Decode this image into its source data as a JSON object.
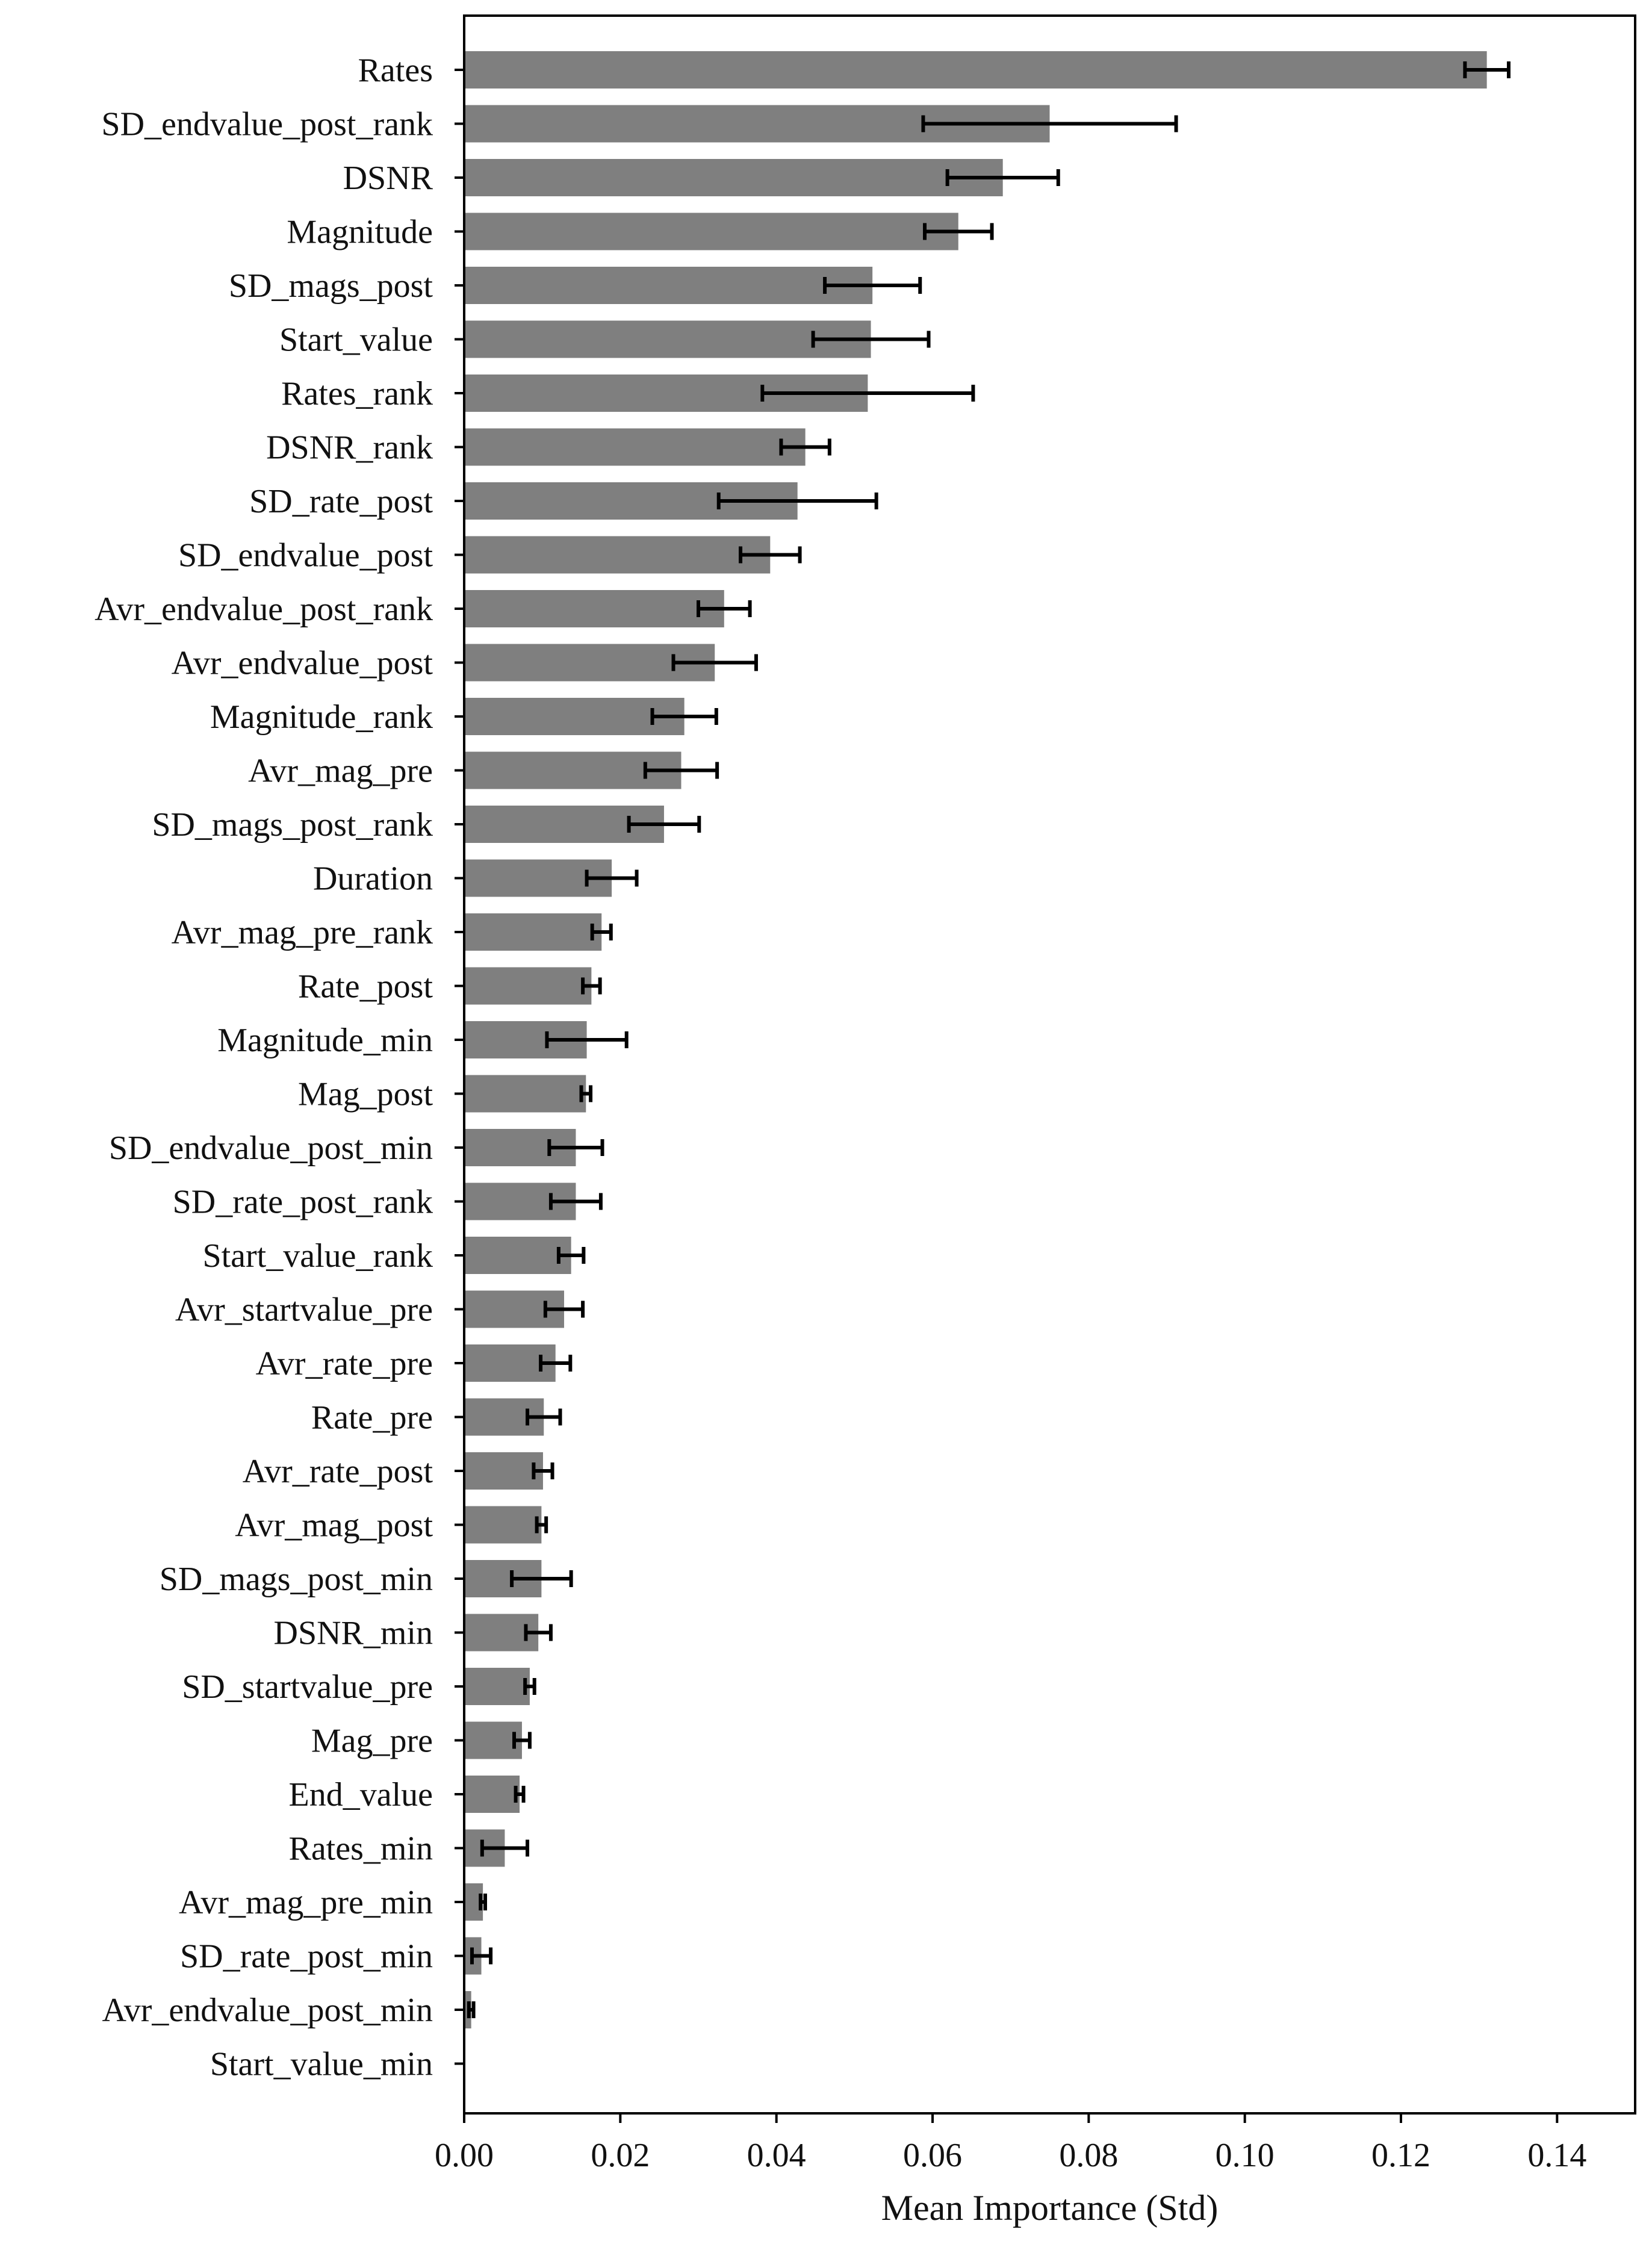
{
  "chart_data": {
    "type": "bar",
    "orientation": "horizontal",
    "title": "",
    "xlabel": "Mean Importance (Std)",
    "ylabel": "",
    "xlim": [
      0,
      0.15
    ],
    "xticks": [
      "0.00",
      "0.02",
      "0.04",
      "0.06",
      "0.08",
      "0.10",
      "0.12",
      "0.14"
    ],
    "grid": false,
    "legend": "none",
    "bar_color": "#7f7f7f",
    "error_color": "#000000",
    "categories": [
      "Rates",
      "SD_endvalue_post_rank",
      "DSNR",
      "Magnitude",
      "SD_mags_post",
      "Start_value",
      "Rates_rank",
      "DSNR_rank",
      "SD_rate_post",
      "SD_endvalue_post",
      "Avr_endvalue_post_rank",
      "Avr_endvalue_post",
      "Magnitude_rank",
      "Avr_mag_pre",
      "SD_mags_post_rank",
      "Duration",
      "Avr_mag_pre_rank",
      "Rate_post",
      "Magnitude_min",
      "Mag_post",
      "SD_endvalue_post_min",
      "SD_rate_post_rank",
      "Start_value_rank",
      "Avr_startvalue_pre",
      "Avr_rate_pre",
      "Rate_pre",
      "Avr_rate_post",
      "Avr_mag_post",
      "SD_mags_post_min",
      "DSNR_min",
      "SD_startvalue_pre",
      "Mag_pre",
      "End_value",
      "Rates_min",
      "Avr_mag_pre_min",
      "SD_rate_post_min",
      "Avr_endvalue_post_min",
      "Start_value_min"
    ],
    "values": [
      0.131,
      0.075,
      0.069,
      0.0633,
      0.0523,
      0.0521,
      0.0517,
      0.0437,
      0.0427,
      0.0392,
      0.0333,
      0.0321,
      0.0282,
      0.0278,
      0.0256,
      0.0189,
      0.0176,
      0.0163,
      0.0157,
      0.0156,
      0.0143,
      0.0143,
      0.0137,
      0.0128,
      0.0117,
      0.0102,
      0.0101,
      0.0099,
      0.0099,
      0.0095,
      0.0084,
      0.0074,
      0.0071,
      0.0052,
      0.0024,
      0.0022,
      0.0009,
      0.0001
    ],
    "errors": [
      0.0028,
      0.0162,
      0.0071,
      0.0043,
      0.0061,
      0.0074,
      0.0135,
      0.0031,
      0.0101,
      0.0038,
      0.0033,
      0.0053,
      0.0041,
      0.0046,
      0.0045,
      0.0032,
      0.0012,
      0.0011,
      0.0051,
      0.0006,
      0.0034,
      0.0032,
      0.0016,
      0.0024,
      0.0019,
      0.0021,
      0.0012,
      0.0006,
      0.0038,
      0.0016,
      0.0006,
      0.001,
      0.0005,
      0.0029,
      0.0003,
      0.0012,
      0.0003,
      0.0
    ]
  }
}
